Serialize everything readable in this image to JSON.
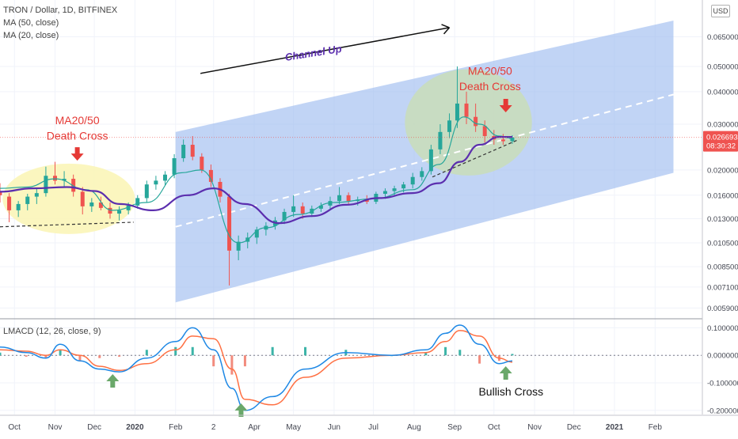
{
  "header": {
    "symbol_line": "TRON / Dollar, 1D, BITFINEX",
    "ma50_label": "MA (50, close)",
    "ma20_label": "MA (20, close)",
    "currency_button": "USD"
  },
  "indicator": {
    "label": "LMACD (12, 26, close, 9)"
  },
  "annotations": {
    "channel": "Channel Up",
    "death_cross_1_line1": "MA20/50",
    "death_cross_1_line2": "Death Cross",
    "death_cross_2_line1": "MA20/50",
    "death_cross_2_line2": "Death Cross",
    "bullish_cross": "Bullish Cross"
  },
  "colors": {
    "up_candle": "#26a69a",
    "down_candle": "#ef5350",
    "ma50": "#5b2eae",
    "ma20": "#26a69a",
    "channel_fill": "#9fbdf0",
    "yellow_zone": "#fbf5b8",
    "green_zone": "#c9ddb9",
    "macd_line": "#1e88e5",
    "signal_line": "#ff7043",
    "annotation_red": "#e53935",
    "annotation_purple": "#5b2eae",
    "arrow_green": "#6aa86a",
    "last_price_bg": "#ef5350"
  },
  "chart_data": [
    {
      "type": "candlestick",
      "scale": "log",
      "title": "TRON / Dollar, 1D, BITFINEX",
      "x_tick_labels": [
        "Oct",
        "Nov",
        "Dec",
        "2020",
        "Feb",
        "2",
        "Apr",
        "May",
        "Jun",
        "Jul",
        "Aug",
        "Sep",
        "Oct",
        "Nov",
        "Dec",
        "2021",
        "Feb"
      ],
      "y_tick_labels": [
        "0.065000",
        "0.050000",
        "0.040000",
        "0.030000",
        "0.020000",
        "0.016000",
        "0.013000",
        "0.010500",
        "0.008500",
        "0.007100",
        "0.005900"
      ],
      "y_ticks": [
        0.065,
        0.05,
        0.04,
        0.03,
        0.02,
        0.016,
        0.013,
        0.0105,
        0.0085,
        0.0071,
        0.0059
      ],
      "ylim": [
        0.0054,
        0.09
      ],
      "last_price_label": "0.026693",
      "countdown_label": "08:30:32",
      "last_price": 0.026693,
      "series": [
        {
          "name": "MA (50, close)",
          "x": [
            "2019-09-20",
            "2019-10-15",
            "2019-11-10",
            "2019-12-01",
            "2019-12-20",
            "2020-01-15",
            "2020-02-10",
            "2020-03-01",
            "2020-03-25",
            "2020-04-20",
            "2020-05-15",
            "2020-06-10",
            "2020-07-05",
            "2020-07-31",
            "2020-08-20",
            "2020-09-05",
            "2020-09-20",
            "2020-10-05",
            "2020-10-15"
          ],
          "values": [
            0.0165,
            0.017,
            0.0172,
            0.0166,
            0.0148,
            0.014,
            0.016,
            0.017,
            0.0148,
            0.0125,
            0.0133,
            0.0147,
            0.0156,
            0.0163,
            0.0178,
            0.0215,
            0.025,
            0.0268,
            0.0268
          ]
        },
        {
          "name": "MA (20, close)",
          "x": [
            "2019-09-20",
            "2019-10-10",
            "2019-11-01",
            "2019-11-25",
            "2019-12-15",
            "2020-01-10",
            "2020-02-05",
            "2020-02-20",
            "2020-03-20",
            "2020-04-10",
            "2020-05-05",
            "2020-06-01",
            "2020-07-01",
            "2020-07-31",
            "2020-08-20",
            "2020-09-08",
            "2020-09-20",
            "2020-10-05",
            "2020-10-15"
          ],
          "values": [
            0.017,
            0.0172,
            0.0185,
            0.0168,
            0.014,
            0.015,
            0.0195,
            0.02,
            0.0105,
            0.012,
            0.0135,
            0.015,
            0.0155,
            0.0168,
            0.021,
            0.032,
            0.03,
            0.027,
            0.0264
          ]
        },
        {
          "name": "Channel upper",
          "x": [
            "2020-02-01",
            "2021-02-15"
          ],
          "values": [
            0.028,
            0.075
          ]
        },
        {
          "name": "Channel lower",
          "x": [
            "2020-02-01",
            "2021-02-15"
          ],
          "values": [
            0.0062,
            0.0195
          ]
        },
        {
          "name": "Channel mid",
          "x": [
            "2020-02-01",
            "2021-02-15"
          ],
          "values": [
            0.0121,
            0.039
          ]
        },
        {
          "name": "Support 2019",
          "x": [
            "2019-09-20",
            "2019-12-31"
          ],
          "values": [
            0.0121,
            0.0126
          ]
        },
        {
          "name": "Support 2020",
          "x": [
            "2020-08-15",
            "2020-10-20"
          ],
          "values": [
            0.0188,
            0.0262
          ]
        }
      ],
      "candles": [
        {
          "x": "2019-09-20",
          "o": 0.0165,
          "h": 0.0178,
          "l": 0.015,
          "c": 0.016
        },
        {
          "x": "2019-09-27",
          "o": 0.0158,
          "h": 0.0163,
          "l": 0.0126,
          "c": 0.014
        },
        {
          "x": "2019-10-04",
          "o": 0.014,
          "h": 0.0152,
          "l": 0.0132,
          "c": 0.0148
        },
        {
          "x": "2019-10-11",
          "o": 0.0148,
          "h": 0.0162,
          "l": 0.014,
          "c": 0.0158
        },
        {
          "x": "2019-10-18",
          "o": 0.0158,
          "h": 0.017,
          "l": 0.0148,
          "c": 0.0163
        },
        {
          "x": "2019-10-25",
          "o": 0.0163,
          "h": 0.0206,
          "l": 0.0158,
          "c": 0.019
        },
        {
          "x": "2019-11-01",
          "o": 0.019,
          "h": 0.0215,
          "l": 0.0176,
          "c": 0.0182
        },
        {
          "x": "2019-11-08",
          "o": 0.0182,
          "h": 0.0198,
          "l": 0.0172,
          "c": 0.0185
        },
        {
          "x": "2019-11-15",
          "o": 0.0185,
          "h": 0.0192,
          "l": 0.0158,
          "c": 0.0165
        },
        {
          "x": "2019-11-22",
          "o": 0.0165,
          "h": 0.0172,
          "l": 0.0135,
          "c": 0.0145
        },
        {
          "x": "2019-11-29",
          "o": 0.0145,
          "h": 0.0156,
          "l": 0.0138,
          "c": 0.015
        },
        {
          "x": "2019-12-06",
          "o": 0.015,
          "h": 0.0158,
          "l": 0.014,
          "c": 0.0143
        },
        {
          "x": "2019-12-13",
          "o": 0.0143,
          "h": 0.015,
          "l": 0.013,
          "c": 0.0136
        },
        {
          "x": "2019-12-20",
          "o": 0.0136,
          "h": 0.0145,
          "l": 0.0128,
          "c": 0.014
        },
        {
          "x": "2019-12-27",
          "o": 0.014,
          "h": 0.015,
          "l": 0.0135,
          "c": 0.0146
        },
        {
          "x": "2020-01-03",
          "o": 0.0146,
          "h": 0.016,
          "l": 0.0142,
          "c": 0.0156
        },
        {
          "x": "2020-01-10",
          "o": 0.0156,
          "h": 0.0182,
          "l": 0.015,
          "c": 0.0176
        },
        {
          "x": "2020-01-17",
          "o": 0.0176,
          "h": 0.019,
          "l": 0.0168,
          "c": 0.0182
        },
        {
          "x": "2020-01-24",
          "o": 0.0182,
          "h": 0.0198,
          "l": 0.0175,
          "c": 0.0192
        },
        {
          "x": "2020-01-31",
          "o": 0.0192,
          "h": 0.023,
          "l": 0.0186,
          "c": 0.0222
        },
        {
          "x": "2020-02-07",
          "o": 0.0222,
          "h": 0.0262,
          "l": 0.0215,
          "c": 0.025
        },
        {
          "x": "2020-02-14",
          "o": 0.025,
          "h": 0.027,
          "l": 0.0218,
          "c": 0.0225
        },
        {
          "x": "2020-02-21",
          "o": 0.0225,
          "h": 0.0232,
          "l": 0.0195,
          "c": 0.02
        },
        {
          "x": "2020-02-28",
          "o": 0.02,
          "h": 0.021,
          "l": 0.0172,
          "c": 0.018
        },
        {
          "x": "2020-03-06",
          "o": 0.018,
          "h": 0.0186,
          "l": 0.015,
          "c": 0.0158
        },
        {
          "x": "2020-03-13",
          "o": 0.0158,
          "h": 0.0162,
          "l": 0.0072,
          "c": 0.0098
        },
        {
          "x": "2020-03-20",
          "o": 0.0098,
          "h": 0.0112,
          "l": 0.009,
          "c": 0.0106
        },
        {
          "x": "2020-03-27",
          "o": 0.0106,
          "h": 0.0115,
          "l": 0.01,
          "c": 0.011
        },
        {
          "x": "2020-04-03",
          "o": 0.011,
          "h": 0.0121,
          "l": 0.0104,
          "c": 0.0118
        },
        {
          "x": "2020-04-10",
          "o": 0.0118,
          "h": 0.0126,
          "l": 0.0112,
          "c": 0.0122
        },
        {
          "x": "2020-04-17",
          "o": 0.0122,
          "h": 0.0132,
          "l": 0.0118,
          "c": 0.0128
        },
        {
          "x": "2020-04-24",
          "o": 0.0128,
          "h": 0.0142,
          "l": 0.0124,
          "c": 0.0138
        },
        {
          "x": "2020-05-01",
          "o": 0.0138,
          "h": 0.016,
          "l": 0.0132,
          "c": 0.0145
        },
        {
          "x": "2020-05-08",
          "o": 0.0145,
          "h": 0.015,
          "l": 0.013,
          "c": 0.0136
        },
        {
          "x": "2020-05-15",
          "o": 0.0136,
          "h": 0.0146,
          "l": 0.0132,
          "c": 0.0142
        },
        {
          "x": "2020-05-22",
          "o": 0.0142,
          "h": 0.015,
          "l": 0.0138,
          "c": 0.0146
        },
        {
          "x": "2020-05-29",
          "o": 0.0146,
          "h": 0.0158,
          "l": 0.0142,
          "c": 0.0152
        },
        {
          "x": "2020-06-05",
          "o": 0.0152,
          "h": 0.0172,
          "l": 0.0148,
          "c": 0.016
        },
        {
          "x": "2020-06-12",
          "o": 0.016,
          "h": 0.0164,
          "l": 0.0148,
          "c": 0.0152
        },
        {
          "x": "2020-06-19",
          "o": 0.0152,
          "h": 0.0158,
          "l": 0.0146,
          "c": 0.0154
        },
        {
          "x": "2020-06-26",
          "o": 0.0154,
          "h": 0.016,
          "l": 0.0148,
          "c": 0.0151
        },
        {
          "x": "2020-07-03",
          "o": 0.0151,
          "h": 0.0165,
          "l": 0.0148,
          "c": 0.0162
        },
        {
          "x": "2020-07-10",
          "o": 0.0162,
          "h": 0.017,
          "l": 0.0155,
          "c": 0.0166
        },
        {
          "x": "2020-07-17",
          "o": 0.0166,
          "h": 0.0174,
          "l": 0.016,
          "c": 0.017
        },
        {
          "x": "2020-07-24",
          "o": 0.017,
          "h": 0.018,
          "l": 0.0164,
          "c": 0.0176
        },
        {
          "x": "2020-07-31",
          "o": 0.0176,
          "h": 0.0195,
          "l": 0.017,
          "c": 0.0188
        },
        {
          "x": "2020-08-07",
          "o": 0.0188,
          "h": 0.0205,
          "l": 0.0182,
          "c": 0.0198
        },
        {
          "x": "2020-08-14",
          "o": 0.0198,
          "h": 0.025,
          "l": 0.0192,
          "c": 0.024
        },
        {
          "x": "2020-08-21",
          "o": 0.024,
          "h": 0.03,
          "l": 0.023,
          "c": 0.028
        },
        {
          "x": "2020-08-28",
          "o": 0.028,
          "h": 0.033,
          "l": 0.0265,
          "c": 0.031
        },
        {
          "x": "2020-09-03",
          "o": 0.031,
          "h": 0.05,
          "l": 0.029,
          "c": 0.036
        },
        {
          "x": "2020-09-10",
          "o": 0.036,
          "h": 0.04,
          "l": 0.03,
          "c": 0.032
        },
        {
          "x": "2020-09-17",
          "o": 0.032,
          "h": 0.036,
          "l": 0.028,
          "c": 0.0295
        },
        {
          "x": "2020-09-24",
          "o": 0.0295,
          "h": 0.031,
          "l": 0.0255,
          "c": 0.027
        },
        {
          "x": "2020-10-01",
          "o": 0.027,
          "h": 0.0285,
          "l": 0.025,
          "c": 0.0262
        },
        {
          "x": "2020-10-08",
          "o": 0.0262,
          "h": 0.0275,
          "l": 0.025,
          "c": 0.0258
        },
        {
          "x": "2020-10-15",
          "o": 0.0258,
          "h": 0.0272,
          "l": 0.0252,
          "c": 0.026693
        }
      ]
    },
    {
      "type": "line",
      "title": "LMACD (12, 26, close, 9)",
      "y_tick_labels": [
        "0.100000",
        "0.000000",
        "-0.100000",
        "-0.200000"
      ],
      "y_ticks": [
        0.1,
        0.0,
        -0.1,
        -0.2
      ],
      "ylim": [
        -0.215,
        0.13
      ],
      "series": [
        {
          "name": "MACD",
          "x": [
            "2019-09-20",
            "2019-10-10",
            "2019-10-25",
            "2019-11-05",
            "2019-11-20",
            "2019-12-05",
            "2019-12-20",
            "2020-01-10",
            "2020-02-01",
            "2020-02-14",
            "2020-03-01",
            "2020-03-15",
            "2020-03-25",
            "2020-04-15",
            "2020-05-10",
            "2020-06-10",
            "2020-07-15",
            "2020-08-10",
            "2020-08-25",
            "2020-09-05",
            "2020-09-20",
            "2020-10-05",
            "2020-10-15"
          ],
          "values": [
            0.03,
            0.01,
            -0.01,
            0.04,
            -0.02,
            -0.05,
            -0.06,
            -0.01,
            0.05,
            0.1,
            0.02,
            -0.12,
            -0.2,
            -0.15,
            -0.05,
            0.01,
            0.0,
            0.02,
            0.08,
            0.11,
            0.04,
            -0.03,
            -0.02
          ]
        },
        {
          "name": "Signal",
          "x": [
            "2019-09-20",
            "2019-10-10",
            "2019-10-25",
            "2019-11-05",
            "2019-11-20",
            "2019-12-05",
            "2019-12-20",
            "2020-01-10",
            "2020-02-01",
            "2020-02-14",
            "2020-03-01",
            "2020-03-15",
            "2020-03-25",
            "2020-04-15",
            "2020-05-10",
            "2020-06-10",
            "2020-07-15",
            "2020-08-10",
            "2020-08-25",
            "2020-09-05",
            "2020-09-20",
            "2020-10-05",
            "2020-10-15"
          ],
          "values": [
            0.02,
            0.015,
            0.0,
            0.02,
            0.0,
            -0.04,
            -0.055,
            -0.03,
            0.02,
            0.07,
            0.06,
            -0.05,
            -0.16,
            -0.18,
            -0.08,
            -0.01,
            0.0,
            0.01,
            0.05,
            0.09,
            0.07,
            -0.01,
            -0.025
          ]
        }
      ],
      "histogram": {
        "x": [
          "2019-09-20",
          "2019-10-10",
          "2019-10-25",
          "2019-11-05",
          "2019-11-20",
          "2019-12-05",
          "2019-12-20",
          "2020-01-10",
          "2020-02-01",
          "2020-02-14",
          "2020-03-01",
          "2020-03-15",
          "2020-03-25",
          "2020-04-15",
          "2020-05-10",
          "2020-06-10",
          "2020-07-15",
          "2020-08-10",
          "2020-08-25",
          "2020-09-05",
          "2020-09-20",
          "2020-10-05",
          "2020-10-15"
        ],
        "values": [
          0.01,
          -0.005,
          -0.01,
          0.02,
          -0.02,
          -0.01,
          -0.005,
          0.02,
          0.03,
          0.03,
          -0.04,
          -0.07,
          -0.04,
          0.03,
          0.03,
          0.02,
          0.0,
          0.01,
          0.03,
          0.02,
          -0.03,
          -0.02,
          0.005
        ]
      }
    }
  ]
}
